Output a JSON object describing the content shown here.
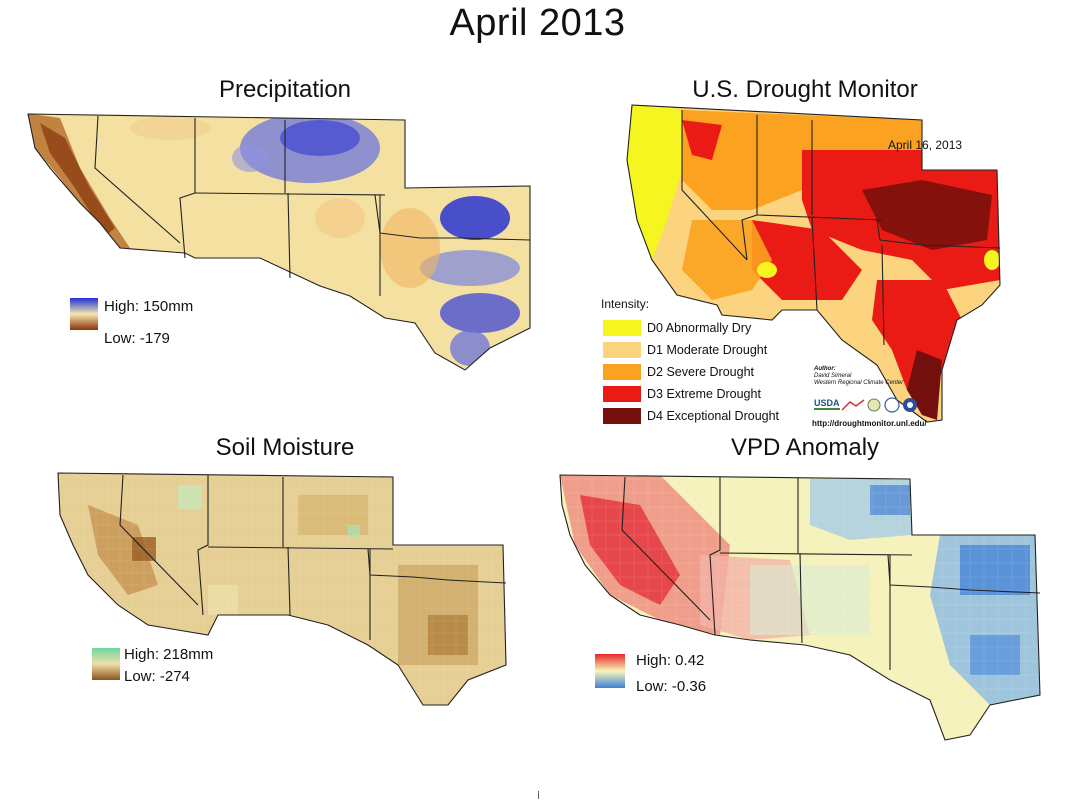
{
  "title": "April 2013",
  "panels": {
    "precipitation": {
      "title": "Precipitation",
      "legend_high": "High: 150mm",
      "legend_low": "Low: -179",
      "colors": {
        "high": "#1f2fd6",
        "mid": "#f6e7b0",
        "low": "#8a3208"
      }
    },
    "drought_monitor": {
      "title": "U.S. Drought Monitor",
      "date": "April 16, 2013",
      "intensity_label": "Intensity:",
      "categories": [
        {
          "label": "D0 Abnormally Dry",
          "color": "#f5f51f"
        },
        {
          "label": "D1 Moderate Drought",
          "color": "#fcd37f"
        },
        {
          "label": "D2 Severe Drought",
          "color": "#fba320"
        },
        {
          "label": "D3 Extreme Drought",
          "color": "#ea1b14"
        },
        {
          "label": "D4 Exceptional Drought",
          "color": "#730f0c"
        }
      ],
      "author_label": "Author:",
      "author_name": "David Simeral",
      "author_org": "Western Regional Climate Center",
      "url": "http://droughtmonitor.unl.edu/",
      "logo_usda": "USDA"
    },
    "soil_moisture": {
      "title": "Soil Moisture",
      "legend_high": "High: 218mm",
      "legend_low": "Low: -274",
      "colors": {
        "high": "#6fd5a0",
        "mid": "#efdfa5",
        "low": "#8a5520"
      }
    },
    "vpd_anomaly": {
      "title": "VPD Anomaly",
      "legend_high": "High: 0.42",
      "legend_low": "Low: -0.36",
      "colors": {
        "high": "#e8242a",
        "mid": "#f8f6b8",
        "low": "#3d7fd6"
      }
    }
  }
}
